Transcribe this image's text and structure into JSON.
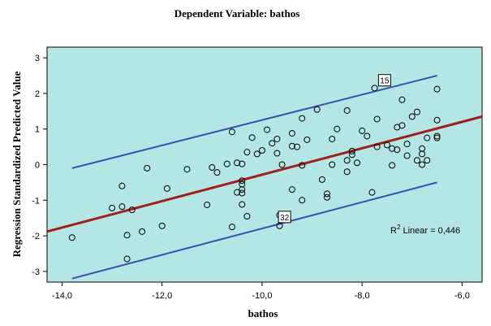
{
  "chart_data": {
    "type": "scatter",
    "title": "Dependent Variable: bathos",
    "xlabel": "bathos",
    "ylabel": "Regression Standardized Predicted Value",
    "xlim": [
      -14.3,
      -5.6
    ],
    "ylim": [
      -3.3,
      3.3
    ],
    "x_ticks": [
      -14,
      -12,
      -10,
      -8,
      -6
    ],
    "x_tick_labels": [
      "-14,0",
      "-12,0",
      "-10,0",
      "-8,0",
      "-6,0"
    ],
    "y_ticks": [
      -3,
      -2,
      -1,
      0,
      1,
      2,
      3
    ],
    "y_tick_labels": [
      "-3",
      "-2",
      "-1",
      "0",
      "1",
      "2",
      "3"
    ],
    "grid": false,
    "background_color": "#b4e6e6",
    "point_color": "#000000",
    "fit_line_color": "#a01e1e",
    "interval_line_color": "#3c50b4",
    "fit_line": {
      "x": [
        -14.3,
        -5.6
      ],
      "y": [
        -1.88,
        1.35
      ]
    },
    "prediction_interval_upper": {
      "x": [
        -13.8,
        -6.5
      ],
      "y": [
        -0.1,
        2.5
      ]
    },
    "prediction_interval_lower": {
      "x": [
        -13.8,
        -6.5
      ],
      "y": [
        -3.2,
        -0.5
      ]
    },
    "r2_label": {
      "prefix": "R",
      "superscript": "2",
      "text": " Linear = 0,446"
    },
    "annotations": [
      {
        "text": "15",
        "x": -7.55,
        "y": 2.37
      },
      {
        "text": "32",
        "x": -9.55,
        "y": -1.47
      }
    ],
    "points": [
      {
        "x": -13.8,
        "y": -2.05
      },
      {
        "x": -13.0,
        "y": -1.22
      },
      {
        "x": -12.8,
        "y": -1.18
      },
      {
        "x": -12.8,
        "y": -0.6
      },
      {
        "x": -12.7,
        "y": -2.65
      },
      {
        "x": -12.7,
        "y": -1.98
      },
      {
        "x": -12.6,
        "y": -1.27
      },
      {
        "x": -12.4,
        "y": -1.88
      },
      {
        "x": -12.3,
        "y": -0.1
      },
      {
        "x": -12.0,
        "y": -1.72
      },
      {
        "x": -11.9,
        "y": -0.67
      },
      {
        "x": -11.5,
        "y": -0.13
      },
      {
        "x": -11.1,
        "y": -1.13
      },
      {
        "x": -11.0,
        "y": -0.08
      },
      {
        "x": -10.9,
        "y": -0.22
      },
      {
        "x": -10.7,
        "y": 0.02
      },
      {
        "x": -10.6,
        "y": 0.92
      },
      {
        "x": -10.6,
        "y": -1.75
      },
      {
        "x": -10.5,
        "y": 0.05
      },
      {
        "x": -10.5,
        "y": -0.78
      },
      {
        "x": -10.4,
        "y": 0.02
      },
      {
        "x": -10.4,
        "y": -0.45
      },
      {
        "x": -10.4,
        "y": -0.55
      },
      {
        "x": -10.4,
        "y": -0.7
      },
      {
        "x": -10.4,
        "y": -0.8
      },
      {
        "x": -10.4,
        "y": -1.12
      },
      {
        "x": -10.3,
        "y": 0.35
      },
      {
        "x": -10.3,
        "y": -1.45
      },
      {
        "x": -10.2,
        "y": 0.76
      },
      {
        "x": -10.1,
        "y": 0.3
      },
      {
        "x": -10.0,
        "y": 0.4
      },
      {
        "x": -9.9,
        "y": 0.98
      },
      {
        "x": -9.8,
        "y": 0.6
      },
      {
        "x": -9.7,
        "y": 0.32
      },
      {
        "x": -9.7,
        "y": 0.72
      },
      {
        "x": -9.65,
        "y": -1.42
      },
      {
        "x": -9.65,
        "y": -1.72
      },
      {
        "x": -9.6,
        "y": 0.0
      },
      {
        "x": -9.4,
        "y": 0.88
      },
      {
        "x": -9.4,
        "y": 0.52
      },
      {
        "x": -9.4,
        "y": -0.7
      },
      {
        "x": -9.3,
        "y": 0.5
      },
      {
        "x": -9.2,
        "y": 1.3
      },
      {
        "x": -9.2,
        "y": -0.02
      },
      {
        "x": -9.2,
        "y": -1.0
      },
      {
        "x": -9.1,
        "y": 0.7
      },
      {
        "x": -8.9,
        "y": 1.55
      },
      {
        "x": -8.8,
        "y": -0.42
      },
      {
        "x": -8.7,
        "y": -0.82
      },
      {
        "x": -8.7,
        "y": -0.92
      },
      {
        "x": -8.6,
        "y": 0.72
      },
      {
        "x": -8.6,
        "y": 0.0
      },
      {
        "x": -8.5,
        "y": 1.0
      },
      {
        "x": -8.3,
        "y": 1.52
      },
      {
        "x": -8.3,
        "y": 0.12
      },
      {
        "x": -8.3,
        "y": -0.2
      },
      {
        "x": -8.2,
        "y": 0.38
      },
      {
        "x": -8.2,
        "y": 0.28
      },
      {
        "x": -8.1,
        "y": 0.05
      },
      {
        "x": -8.0,
        "y": 0.95
      },
      {
        "x": -7.9,
        "y": 0.8
      },
      {
        "x": -7.8,
        "y": -0.78
      },
      {
        "x": -7.75,
        "y": 2.15
      },
      {
        "x": -7.7,
        "y": 1.28
      },
      {
        "x": -7.7,
        "y": 0.5
      },
      {
        "x": -7.5,
        "y": 0.55
      },
      {
        "x": -7.4,
        "y": -0.02
      },
      {
        "x": -7.4,
        "y": 0.45
      },
      {
        "x": -7.3,
        "y": 1.05
      },
      {
        "x": -7.3,
        "y": 0.42
      },
      {
        "x": -7.2,
        "y": 1.82
      },
      {
        "x": -7.2,
        "y": 1.1
      },
      {
        "x": -7.1,
        "y": 0.58
      },
      {
        "x": -7.1,
        "y": 0.25
      },
      {
        "x": -7.0,
        "y": 1.35
      },
      {
        "x": -6.9,
        "y": 1.48
      },
      {
        "x": -6.9,
        "y": 0.12
      },
      {
        "x": -6.8,
        "y": 0.45
      },
      {
        "x": -6.8,
        "y": 0.3
      },
      {
        "x": -6.8,
        "y": 0.0
      },
      {
        "x": -6.7,
        "y": 0.75
      },
      {
        "x": -6.7,
        "y": 0.12
      },
      {
        "x": -6.5,
        "y": 2.12
      },
      {
        "x": -6.5,
        "y": 1.25
      },
      {
        "x": -6.5,
        "y": 0.8
      },
      {
        "x": -6.5,
        "y": 0.75
      }
    ]
  }
}
